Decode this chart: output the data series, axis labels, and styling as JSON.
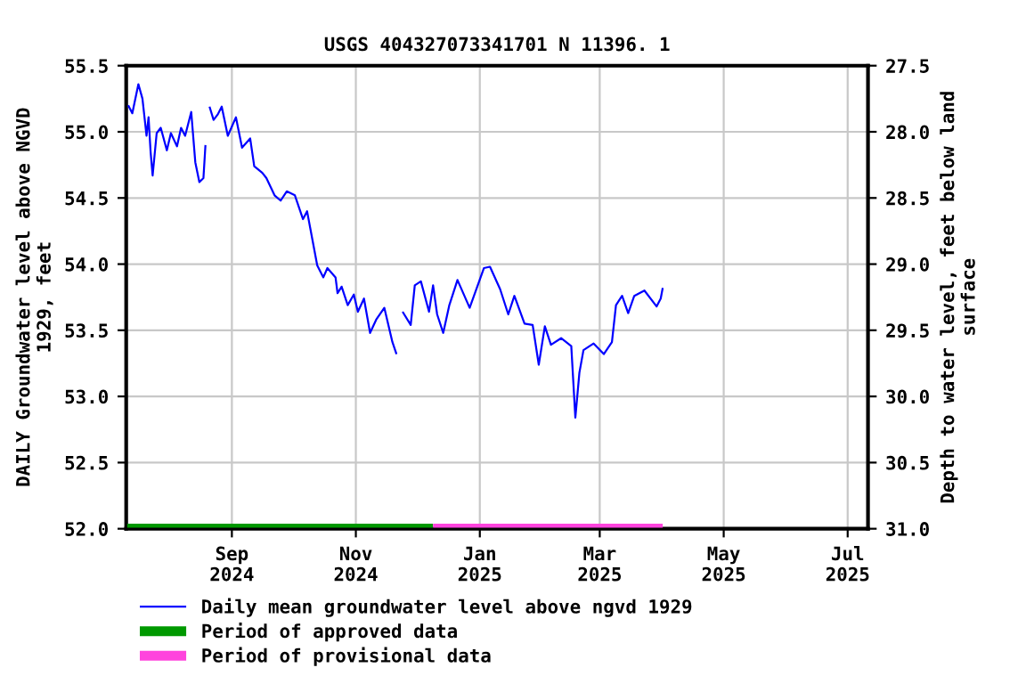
{
  "chart_data": {
    "type": "line",
    "title": "USGS 404327073341701 N 11396. 1",
    "ylabel": "DAILY Groundwater level above NGVD\n1929, feet",
    "y2label": "Depth to water level, feet below land\nsurface",
    "xlim": [
      "2024-07-11",
      "2025-07-11"
    ],
    "xticks": [
      {
        "value": "2024-09-01",
        "label": "Sep\n2024"
      },
      {
        "value": "2024-11-01",
        "label": "Nov\n2024"
      },
      {
        "value": "2025-01-01",
        "label": "Jan\n2025"
      },
      {
        "value": "2025-03-01",
        "label": "Mar\n2025"
      },
      {
        "value": "2025-05-01",
        "label": "May\n2025"
      },
      {
        "value": "2025-07-01",
        "label": "Jul\n2025"
      }
    ],
    "ylim": [
      52.0,
      55.5
    ],
    "yticks": [
      {
        "value": 52.0,
        "label": "52.0"
      },
      {
        "value": 52.5,
        "label": "52.5"
      },
      {
        "value": 53.0,
        "label": "53.0"
      },
      {
        "value": 53.5,
        "label": "53.5"
      },
      {
        "value": 54.0,
        "label": "54.0"
      },
      {
        "value": 54.5,
        "label": "54.5"
      },
      {
        "value": 55.0,
        "label": "55.0"
      },
      {
        "value": 55.5,
        "label": "55.5"
      }
    ],
    "y2lim": [
      31.0,
      27.5
    ],
    "y2ticks": [
      {
        "value": 27.5,
        "label": "27.5"
      },
      {
        "value": 28.0,
        "label": "28.0"
      },
      {
        "value": 28.5,
        "label": "28.5"
      },
      {
        "value": 29.0,
        "label": "29.0"
      },
      {
        "value": 29.5,
        "label": "29.5"
      },
      {
        "value": 30.0,
        "label": "30.0"
      },
      {
        "value": 30.5,
        "label": "30.5"
      },
      {
        "value": 31.0,
        "label": "31.0"
      }
    ],
    "grid": true,
    "legend": "bottom",
    "series": [
      {
        "name": "Daily mean groundwater level above ngvd 1929",
        "color": "#0000ff",
        "x": [
          "2024-07-12",
          "2024-07-14",
          "2024-07-17",
          "2024-07-19",
          "2024-07-21",
          "2024-07-22",
          "2024-07-23",
          "2024-07-24",
          "2024-07-26",
          "2024-07-28",
          "2024-07-31",
          "2024-08-02",
          "2024-08-05",
          "2024-08-07",
          "2024-08-09",
          "2024-08-12",
          "2024-08-14",
          "2024-08-16",
          "2024-08-18",
          "2024-08-19",
          "2024-08-20",
          "2024-08-21",
          "2024-08-23",
          "2024-08-25",
          "2024-08-27",
          "2024-08-30",
          "2024-09-03",
          "2024-09-06",
          "2024-09-10",
          "2024-09-12",
          "2024-09-16",
          "2024-09-18",
          "2024-09-22",
          "2024-09-25",
          "2024-09-28",
          "2024-10-02",
          "2024-10-06",
          "2024-10-08",
          "2024-10-13",
          "2024-10-16",
          "2024-10-18",
          "2024-10-22",
          "2024-10-23",
          "2024-10-25",
          "2024-10-28",
          "2024-10-31",
          "2024-11-02",
          "2024-11-05",
          "2024-11-08",
          "2024-11-11",
          "2024-11-15",
          "2024-11-19",
          "2024-11-21",
          "2024-11-22",
          "2024-11-24",
          "2024-11-28",
          "2024-11-30",
          "2024-12-03",
          "2024-12-07",
          "2024-12-09",
          "2024-12-11",
          "2024-12-14",
          "2024-12-17",
          "2024-12-21",
          "2024-12-27",
          "2025-01-03",
          "2025-01-06",
          "2025-01-11",
          "2025-01-15",
          "2025-01-18",
          "2025-01-23",
          "2025-01-27",
          "2025-01-30",
          "2025-02-02",
          "2025-02-05",
          "2025-02-10",
          "2025-02-15",
          "2025-02-17",
          "2025-02-19",
          "2025-02-21",
          "2025-02-26",
          "2025-03-03",
          "2025-03-07",
          "2025-03-09",
          "2025-03-12",
          "2025-03-15",
          "2025-03-18",
          "2025-03-23",
          "2025-03-29",
          "2025-03-31",
          "2025-04-01"
        ],
        "values": [
          55.2,
          55.14,
          55.36,
          55.25,
          54.97,
          55.11,
          54.85,
          54.67,
          54.99,
          55.03,
          54.86,
          54.99,
          54.89,
          55.03,
          54.97,
          55.15,
          54.77,
          54.62,
          54.65,
          54.9,
          null,
          55.19,
          55.09,
          55.13,
          55.19,
          54.97,
          55.11,
          54.88,
          54.95,
          54.74,
          54.69,
          54.65,
          54.52,
          54.48,
          54.55,
          54.52,
          54.34,
          54.4,
          53.99,
          53.9,
          53.97,
          53.9,
          53.78,
          53.83,
          53.69,
          53.77,
          53.64,
          53.74,
          53.48,
          53.58,
          53.67,
          53.41,
          53.32,
          null,
          53.64,
          53.54,
          53.84,
          53.87,
          53.64,
          53.84,
          53.62,
          53.48,
          53.69,
          53.88,
          53.67,
          53.97,
          53.98,
          53.81,
          53.62,
          53.76,
          53.55,
          53.54,
          53.24,
          53.53,
          53.39,
          53.44,
          53.38,
          52.84,
          53.18,
          53.35,
          53.4,
          53.32,
          53.41,
          53.69,
          53.76,
          53.63,
          53.76,
          53.8,
          53.68,
          53.74,
          53.82
        ]
      },
      {
        "name": "Period of approved data",
        "color": "#009900",
        "x": [
          "2024-07-11",
          "2024-12-09"
        ],
        "values": [
          52.0,
          52.0
        ]
      },
      {
        "name": "Period of provisional data",
        "color": "#ff44dd",
        "x": [
          "2024-12-09",
          "2025-04-01"
        ],
        "values": [
          52.0,
          52.0
        ]
      }
    ]
  }
}
